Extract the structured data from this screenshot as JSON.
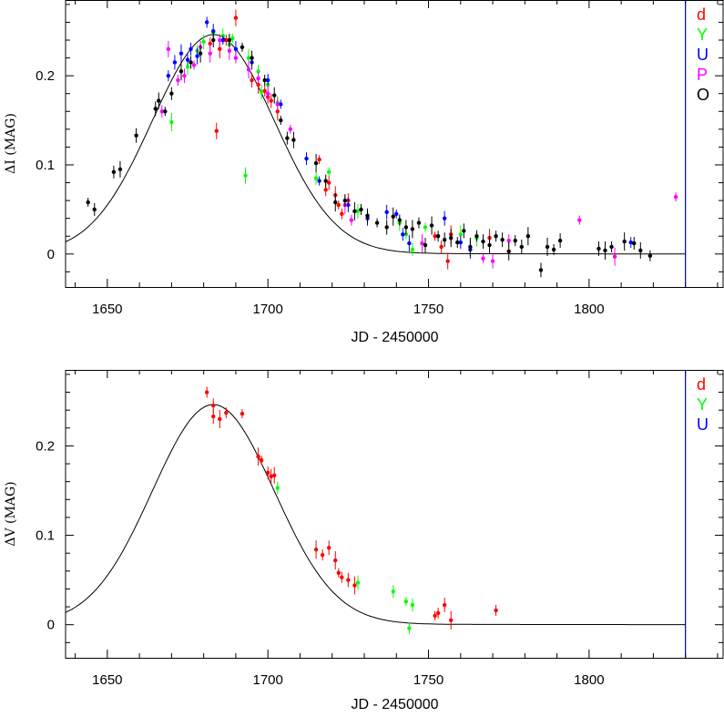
{
  "chart_data": [
    {
      "type": "scatter",
      "title": "",
      "xlabel": "JD - 2450000",
      "ylabel": "ΔI (MAG)",
      "xlim": [
        1637,
        1842
      ],
      "ylim": [
        -0.037,
        0.285
      ],
      "xticks": [
        1650,
        1700,
        1750,
        1800
      ],
      "xtick_labels": [
        "1650",
        "1700",
        "1750",
        "1800"
      ],
      "yticks": [
        0,
        0.1,
        0.2
      ],
      "ytick_labels": [
        "0",
        "0.1",
        "0.2"
      ],
      "grid": false,
      "legend_position": "right",
      "model_curve": {
        "peak_x": 1683,
        "peak_y": 0.245,
        "width": 19,
        "baseline": 0.0
      },
      "vertical_line_x": 1830,
      "series": [
        {
          "name": "d",
          "color": "#ff0000",
          "points": [
            [
              1684,
              0.138
            ],
            [
              1682,
              0.236
            ],
            [
              1685,
              0.23
            ],
            [
              1687,
              0.24
            ],
            [
              1690,
              0.265
            ],
            [
              1695,
              0.195
            ],
            [
              1697,
              0.19
            ],
            [
              1699,
              0.183
            ],
            [
              1700,
              0.176
            ],
            [
              1701,
              0.172
            ],
            [
              1703,
              0.16
            ],
            [
              1716,
              0.106
            ],
            [
              1719,
              0.08
            ],
            [
              1722,
              0.055
            ],
            [
              1723,
              0.045
            ],
            [
              1725,
              0.06
            ],
            [
              1752,
              0.02
            ],
            [
              1754,
              0.008
            ],
            [
              1757,
              0.022
            ],
            [
              1769,
              0.018
            ],
            [
              1718,
              0.072
            ],
            [
              1721,
              0.066
            ],
            [
              1756,
              -0.008
            ]
          ]
        },
        {
          "name": "Y",
          "color": "#00ff00",
          "points": [
            [
              1670,
              0.148
            ],
            [
              1675,
              0.21
            ],
            [
              1678,
              0.228
            ],
            [
              1680,
              0.238
            ],
            [
              1683,
              0.248
            ],
            [
              1686,
              0.245
            ],
            [
              1689,
              0.242
            ],
            [
              1693,
              0.088
            ],
            [
              1694,
              0.22
            ],
            [
              1697,
              0.205
            ],
            [
              1700,
              0.19
            ],
            [
              1703,
              0.17
            ],
            [
              1715,
              0.085
            ],
            [
              1719,
              0.092
            ],
            [
              1728,
              0.048
            ],
            [
              1741,
              0.035
            ],
            [
              1743,
              0.022
            ],
            [
              1745,
              0.005
            ],
            [
              1749,
              0.03
            ],
            [
              1760,
              0.022
            ],
            [
              1765,
              0.018
            ],
            [
              1688,
              0.235
            ],
            [
              1698,
              0.182
            ]
          ]
        },
        {
          "name": "U",
          "color": "#0000ff",
          "points": [
            [
              1669,
              0.2
            ],
            [
              1671,
              0.215
            ],
            [
              1673,
              0.225
            ],
            [
              1675,
              0.218
            ],
            [
              1676,
              0.23
            ],
            [
              1678,
              0.222
            ],
            [
              1681,
              0.26
            ],
            [
              1683,
              0.25
            ],
            [
              1686,
              0.24
            ],
            [
              1690,
              0.23
            ],
            [
              1695,
              0.215
            ],
            [
              1700,
              0.195
            ],
            [
              1704,
              0.168
            ],
            [
              1712,
              0.107
            ],
            [
              1716,
              0.082
            ],
            [
              1725,
              0.055
            ],
            [
              1731,
              0.04
            ],
            [
              1737,
              0.047
            ],
            [
              1740,
              0.045
            ],
            [
              1742,
              0.022
            ],
            [
              1744,
              0.012
            ],
            [
              1755,
              0.04
            ],
            [
              1760,
              0.013
            ],
            [
              1763,
              0.005
            ],
            [
              1813,
              0.013
            ]
          ]
        },
        {
          "name": "P",
          "color": "#ff00ff",
          "points": [
            [
              1667,
              0.16
            ],
            [
              1669,
              0.23
            ],
            [
              1672,
              0.195
            ],
            [
              1674,
              0.2
            ],
            [
              1677,
              0.212
            ],
            [
              1679,
              0.232
            ],
            [
              1682,
              0.225
            ],
            [
              1685,
              0.24
            ],
            [
              1688,
              0.228
            ],
            [
              1690,
              0.22
            ],
            [
              1694,
              0.207
            ],
            [
              1697,
              0.197
            ],
            [
              1700,
              0.18
            ],
            [
              1703,
              0.168
            ],
            [
              1707,
              0.14
            ],
            [
              1724,
              0.055
            ],
            [
              1726,
              0.038
            ],
            [
              1748,
              0.012
            ],
            [
              1767,
              -0.005
            ],
            [
              1770,
              -0.008
            ],
            [
              1775,
              0.015
            ],
            [
              1797,
              0.038
            ],
            [
              1808,
              -0.003
            ],
            [
              1827,
              0.064
            ]
          ]
        },
        {
          "name": "O",
          "color": "#000000",
          "points": [
            [
              1644,
              0.058
            ],
            [
              1646,
              0.05
            ],
            [
              1652,
              0.092
            ],
            [
              1654,
              0.095
            ],
            [
              1659,
              0.133
            ],
            [
              1665,
              0.163
            ],
            [
              1666,
              0.172
            ],
            [
              1668,
              0.16
            ],
            [
              1670,
              0.18
            ],
            [
              1673,
              0.205
            ],
            [
              1676,
              0.215
            ],
            [
              1679,
              0.225
            ],
            [
              1683,
              0.24
            ],
            [
              1688,
              0.24
            ],
            [
              1692,
              0.232
            ],
            [
              1695,
              0.22
            ],
            [
              1699,
              0.195
            ],
            [
              1702,
              0.178
            ],
            [
              1704,
              0.15
            ],
            [
              1706,
              0.13
            ],
            [
              1708,
              0.128
            ],
            [
              1715,
              0.102
            ],
            [
              1718,
              0.082
            ],
            [
              1721,
              0.058
            ],
            [
              1724,
              0.06
            ],
            [
              1727,
              0.048
            ],
            [
              1729,
              0.05
            ],
            [
              1731,
              0.043
            ],
            [
              1734,
              0.035
            ],
            [
              1737,
              0.03
            ],
            [
              1739,
              0.042
            ],
            [
              1741,
              0.038
            ],
            [
              1743,
              0.03
            ],
            [
              1745,
              0.028
            ],
            [
              1747,
              0.035
            ],
            [
              1749,
              0.01
            ],
            [
              1751,
              0.032
            ],
            [
              1753,
              0.02
            ],
            [
              1755,
              0.016
            ],
            [
              1757,
              0.018
            ],
            [
              1759,
              0.013
            ],
            [
              1761,
              0.026
            ],
            [
              1763,
              0.008
            ],
            [
              1765,
              0.02
            ],
            [
              1767,
              0.014
            ],
            [
              1769,
              0.01
            ],
            [
              1771,
              0.02
            ],
            [
              1773,
              0.016
            ],
            [
              1775,
              0.003
            ],
            [
              1777,
              0.015
            ],
            [
              1779,
              0.008
            ],
            [
              1781,
              0.02
            ],
            [
              1785,
              -0.018
            ],
            [
              1787,
              0.008
            ],
            [
              1789,
              0.005
            ],
            [
              1791,
              0.015
            ],
            [
              1803,
              0.006
            ],
            [
              1805,
              0.004
            ],
            [
              1807,
              0.008
            ],
            [
              1811,
              0.014
            ],
            [
              1814,
              0.012
            ],
            [
              1816,
              0.004
            ],
            [
              1819,
              -0.002
            ]
          ]
        }
      ]
    },
    {
      "type": "scatter",
      "title": "",
      "xlabel": "JD - 2450000",
      "ylabel": "ΔV (MAG)",
      "xlim": [
        1637,
        1842
      ],
      "ylim": [
        -0.037,
        0.285
      ],
      "xticks": [
        1650,
        1700,
        1750,
        1800
      ],
      "xtick_labels": [
        "1650",
        "1700",
        "1750",
        "1800"
      ],
      "yticks": [
        0,
        0.1,
        0.2
      ],
      "ytick_labels": [
        "0",
        "0.1",
        "0.2"
      ],
      "grid": false,
      "legend_position": "right",
      "model_curve": {
        "peak_x": 1683,
        "peak_y": 0.245,
        "width": 19,
        "baseline": 0.0
      },
      "vertical_line_x": 1830,
      "series": [
        {
          "name": "d",
          "color": "#ff0000",
          "points": [
            [
              1681,
              0.26
            ],
            [
              1683,
              0.245
            ],
            [
              1683,
              0.233
            ],
            [
              1685,
              0.23
            ],
            [
              1687,
              0.237
            ],
            [
              1692,
              0.236
            ],
            [
              1697,
              0.188
            ],
            [
              1698,
              0.184
            ],
            [
              1700,
              0.17
            ],
            [
              1701,
              0.166
            ],
            [
              1702,
              0.167
            ],
            [
              1715,
              0.084
            ],
            [
              1717,
              0.078
            ],
            [
              1719,
              0.086
            ],
            [
              1721,
              0.072
            ],
            [
              1722,
              0.058
            ],
            [
              1723,
              0.053
            ],
            [
              1725,
              0.05
            ],
            [
              1727,
              0.044
            ],
            [
              1752,
              0.01
            ],
            [
              1753,
              0.013
            ],
            [
              1755,
              0.022
            ],
            [
              1757,
              0.005
            ],
            [
              1771,
              0.016
            ]
          ]
        },
        {
          "name": "Y",
          "color": "#00ff00",
          "points": [
            [
              1703,
              0.153
            ],
            [
              1728,
              0.047
            ],
            [
              1739,
              0.037
            ],
            [
              1743,
              0.026
            ],
            [
              1745,
              0.022
            ],
            [
              1744,
              -0.004
            ]
          ]
        },
        {
          "name": "U",
          "color": "#0000ff",
          "points": []
        }
      ]
    }
  ]
}
